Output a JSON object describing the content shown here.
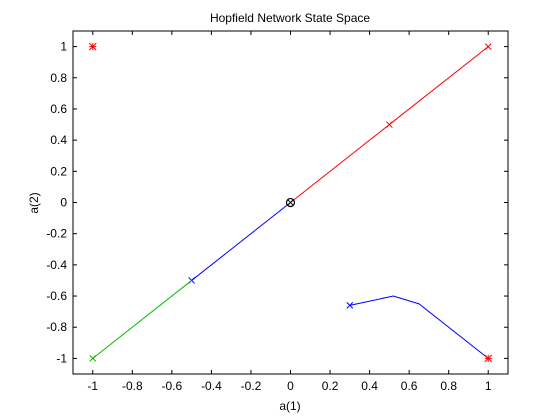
{
  "chart_data": {
    "type": "line",
    "title": "Hopfield Network State Space",
    "xlabel": "a(1)",
    "ylabel": "a(2)",
    "xlim": [
      -1.1,
      1.1
    ],
    "ylim": [
      -1.1,
      1.1
    ],
    "x_ticks": [
      -1,
      -0.8,
      -0.6,
      -0.4,
      -0.2,
      0,
      0.2,
      0.4,
      0.6,
      0.8,
      1
    ],
    "x_tick_labels": [
      "-1",
      "-0.8",
      "-0.6",
      "-0.4",
      "-0.2",
      "0",
      "0.2",
      "0.4",
      "0.6",
      "0.8",
      "1"
    ],
    "y_ticks": [
      -1,
      -0.8,
      -0.6,
      -0.4,
      -0.2,
      0,
      0.2,
      0.4,
      0.6,
      0.8,
      1
    ],
    "y_tick_labels": [
      "-1",
      "-0.8",
      "-0.6",
      "-0.4",
      "-0.2",
      "0",
      "0.2",
      "0.4",
      "0.6",
      "0.8",
      "1"
    ],
    "grid": false,
    "series": [
      {
        "color": "#ff0000",
        "points": [
          [
            1,
            1
          ],
          [
            0.5,
            0.5
          ],
          [
            0,
            0
          ]
        ],
        "start_marker": "x",
        "mid_markers": [
          1
        ]
      },
      {
        "color": "#0000ff",
        "points": [
          [
            -0.5,
            -0.5
          ],
          [
            0,
            0
          ]
        ],
        "start_marker": "x",
        "mid_markers": []
      },
      {
        "color": "#00bb00",
        "points": [
          [
            -1,
            -1
          ],
          [
            -0.5,
            -0.5
          ]
        ],
        "start_marker": "x",
        "mid_markers": []
      },
      {
        "color": "#0000ff",
        "points": [
          [
            0.3,
            -0.66
          ],
          [
            0.52,
            -0.6
          ],
          [
            0.65,
            -0.65
          ],
          [
            1,
            -1
          ]
        ],
        "start_marker": "x",
        "mid_markers": []
      }
    ],
    "stable_points": [
      {
        "x": -1,
        "y": 1,
        "marker": "asterisk",
        "color": "#ff0000"
      },
      {
        "x": 1,
        "y": -1,
        "marker": "asterisk",
        "color": "#ff0000"
      }
    ],
    "saddle_point": {
      "x": 0,
      "y": 0,
      "marker": "circle-x",
      "color": "#000000"
    }
  }
}
